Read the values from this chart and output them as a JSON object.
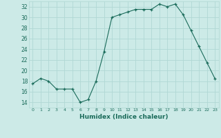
{
  "x": [
    0,
    1,
    2,
    3,
    4,
    5,
    6,
    7,
    8,
    9,
    10,
    11,
    12,
    13,
    14,
    15,
    16,
    17,
    18,
    19,
    20,
    21,
    22,
    23
  ],
  "y": [
    17.5,
    18.5,
    18.0,
    16.5,
    16.5,
    16.5,
    14.0,
    14.5,
    18.0,
    23.5,
    30.0,
    30.5,
    31.0,
    31.5,
    31.5,
    31.5,
    32.5,
    32.0,
    32.5,
    30.5,
    27.5,
    24.5,
    21.5,
    18.5
  ],
  "xlabel": "Humidex (Indice chaleur)",
  "line_color": "#1a6b5a",
  "marker": "+",
  "marker_size": 3,
  "bg_color": "#cceae7",
  "grid_color": "#b0d8d4",
  "tick_color": "#1a6b5a",
  "ylim": [
    13,
    33
  ],
  "xlim": [
    -0.5,
    23.5
  ],
  "yticks": [
    14,
    16,
    18,
    20,
    22,
    24,
    26,
    28,
    30,
    32
  ],
  "xticks": [
    0,
    1,
    2,
    3,
    4,
    5,
    6,
    7,
    8,
    9,
    10,
    11,
    12,
    13,
    14,
    15,
    16,
    17,
    18,
    19,
    20,
    21,
    22,
    23
  ]
}
